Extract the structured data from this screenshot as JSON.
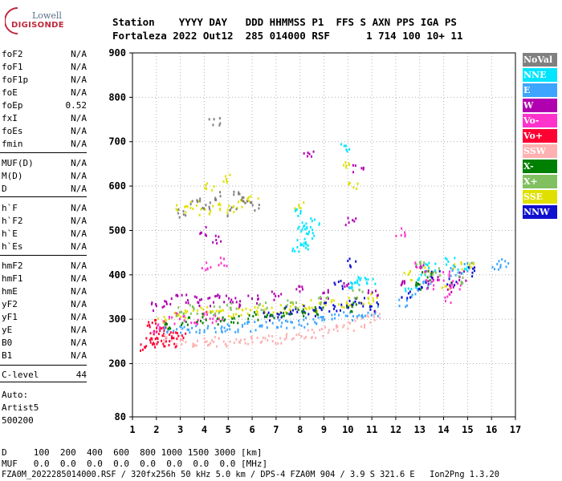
{
  "logo": {
    "line1": "Lowell",
    "line2": "DIGISONDE"
  },
  "header": {
    "line1": "Station    YYYY DAY   DDD HHMMSS P1  FFS S AXN PPS IGA PS",
    "line2": "Fortaleza 2022 Out12  285 014000 RSF      1 714 100 10+ 11"
  },
  "params": {
    "group1": [
      {
        "name": "foF2",
        "value": "N/A"
      },
      {
        "name": "foF1",
        "value": "N/A"
      },
      {
        "name": "foF1p",
        "value": "N/A"
      },
      {
        "name": "foE",
        "value": "N/A"
      },
      {
        "name": "foEp",
        "value": "0.52"
      },
      {
        "name": "fxI",
        "value": "N/A"
      },
      {
        "name": "foEs",
        "value": "N/A"
      },
      {
        "name": "fmin",
        "value": "N/A"
      }
    ],
    "group2": [
      {
        "name": "MUF(D)",
        "value": "N/A"
      },
      {
        "name": "M(D)",
        "value": "N/A"
      },
      {
        "name": "D",
        "value": "N/A"
      }
    ],
    "group3": [
      {
        "name": "h`F",
        "value": "N/A"
      },
      {
        "name": "h`F2",
        "value": "N/A"
      },
      {
        "name": "h`E",
        "value": "N/A"
      },
      {
        "name": "h`Es",
        "value": "N/A"
      }
    ],
    "group4": [
      {
        "name": "hmF2",
        "value": "N/A"
      },
      {
        "name": "hmF1",
        "value": "N/A"
      },
      {
        "name": "hmE",
        "value": "N/A"
      },
      {
        "name": "yF2",
        "value": "N/A"
      },
      {
        "name": "yF1",
        "value": "N/A"
      },
      {
        "name": "yE",
        "value": "N/A"
      },
      {
        "name": "B0",
        "value": "N/A"
      },
      {
        "name": "B1",
        "value": "N/A"
      }
    ],
    "group5": [
      {
        "name": "C-level",
        "value": "44"
      }
    ]
  },
  "auto": {
    "line1": "Auto:",
    "line2": "Artist5",
    "line3": "500200"
  },
  "legend": [
    {
      "label": "NoVal",
      "color": "#808080"
    },
    {
      "label": "NNE",
      "color": "#00e5ff"
    },
    {
      "label": "E",
      "color": "#3da5ff"
    },
    {
      "label": "W",
      "color": "#b000b0"
    },
    {
      "label": "Vo-",
      "color": "#ff33cc"
    },
    {
      "label": "Vo+",
      "color": "#ff0033"
    },
    {
      "label": "SSW",
      "color": "#ffb0b0"
    },
    {
      "label": "X-",
      "color": "#008000"
    },
    {
      "label": "X+",
      "color": "#80c060"
    },
    {
      "label": "SSE",
      "color": "#e0e000"
    },
    {
      "label": "NNW",
      "color": "#1010d0"
    }
  ],
  "footer": {
    "row_d": "D     100  200  400  600  800 1000 1500 3000 [km]",
    "row_muf": "MUF   0.0  0.0  0.0  0.0  0.0  0.0  0.0  0.0 [MHz]",
    "row_file": "FZA0M_2022285014000.RSF / 320fx256h 50 kHz 5.0 km / DPS-4 FZA0M 904 / 3.9 S 321.6 E   Ion2Png 1.3.20"
  },
  "chart_data": {
    "type": "scatter",
    "title": "",
    "xlabel": "",
    "ylabel": "",
    "xlim": [
      1,
      17
    ],
    "ylim": [
      80,
      900
    ],
    "x_ticks": [
      1,
      2,
      3,
      4,
      5,
      6,
      7,
      8,
      9,
      10,
      11,
      12,
      13,
      14,
      15,
      16,
      17
    ],
    "y_ticks": [
      80,
      200,
      300,
      400,
      500,
      600,
      700,
      800,
      900
    ],
    "grid": "dotted",
    "legend_position": "right",
    "series": [
      {
        "name": "Vo+",
        "color": "#ff0033",
        "points": [
          [
            1.5,
            240
          ],
          [
            1.7,
            250
          ],
          [
            1.9,
            270
          ],
          [
            2.0,
            255
          ],
          [
            2.2,
            245
          ],
          [
            2.4,
            260
          ],
          [
            2.6,
            250
          ],
          [
            2.8,
            270
          ],
          [
            3.0,
            265
          ],
          [
            2.1,
            290
          ],
          [
            1.8,
            285
          ],
          [
            2.3,
            275
          ]
        ]
      },
      {
        "name": "SSW",
        "color": "#ffb0b0",
        "points": [
          [
            2.5,
            258
          ],
          [
            3.0,
            255
          ],
          [
            3.5,
            252
          ],
          [
            4.0,
            250
          ],
          [
            4.5,
            252
          ],
          [
            5.0,
            250
          ],
          [
            5.5,
            250
          ],
          [
            6.0,
            252
          ],
          [
            6.5,
            255
          ],
          [
            7.0,
            258
          ],
          [
            7.5,
            262
          ],
          [
            8.0,
            265
          ],
          [
            8.5,
            270
          ],
          [
            9.0,
            275
          ],
          [
            9.5,
            280
          ],
          [
            10.0,
            285
          ],
          [
            10.5,
            295
          ],
          [
            11.0,
            305
          ],
          [
            11.3,
            315
          ]
        ]
      },
      {
        "name": "E",
        "color": "#3da5ff",
        "points": [
          [
            2.5,
            280
          ],
          [
            3.0,
            280
          ],
          [
            3.5,
            278
          ],
          [
            4.0,
            278
          ],
          [
            4.5,
            280
          ],
          [
            5.0,
            282
          ],
          [
            5.5,
            284
          ],
          [
            6.0,
            286
          ],
          [
            6.5,
            288
          ],
          [
            7.0,
            290
          ],
          [
            7.5,
            292
          ],
          [
            8.0,
            295
          ],
          [
            8.5,
            298
          ],
          [
            9.0,
            300
          ],
          [
            9.5,
            305
          ],
          [
            10.0,
            310
          ],
          [
            10.5,
            315
          ],
          [
            11.0,
            320
          ],
          [
            12.3,
            340
          ],
          [
            12.8,
            360
          ],
          [
            13.3,
            380
          ],
          [
            14.4,
            410
          ],
          [
            15.0,
            420
          ],
          [
            16.2,
            425
          ],
          [
            16.5,
            430
          ]
        ]
      },
      {
        "name": "SSE",
        "color": "#e0e000",
        "points": [
          [
            2.2,
            300
          ],
          [
            2.7,
            310
          ],
          [
            3.2,
            315
          ],
          [
            3.7,
            318
          ],
          [
            4.2,
            320
          ],
          [
            4.7,
            315
          ],
          [
            5.2,
            318
          ],
          [
            5.7,
            320
          ],
          [
            6.2,
            322
          ],
          [
            6.7,
            320
          ],
          [
            7.2,
            325
          ],
          [
            7.7,
            330
          ],
          [
            8.2,
            335
          ],
          [
            8.7,
            330
          ],
          [
            9.2,
            335
          ],
          [
            9.7,
            338
          ],
          [
            10.2,
            340
          ],
          [
            10.7,
            345
          ],
          [
            11.0,
            350
          ],
          [
            3.0,
            550
          ],
          [
            3.5,
            560
          ],
          [
            4.0,
            545
          ],
          [
            4.5,
            555
          ],
          [
            5.0,
            550
          ],
          [
            5.5,
            560
          ],
          [
            6.0,
            570
          ],
          [
            7.9,
            560
          ],
          [
            9.8,
            650
          ],
          [
            10.2,
            600
          ],
          [
            12.5,
            400
          ],
          [
            13.2,
            410
          ],
          [
            14.1,
            380
          ],
          [
            14.6,
            420
          ],
          [
            15.0,
            430
          ],
          [
            4.2,
            600
          ],
          [
            5.0,
            620
          ]
        ]
      },
      {
        "name": "W",
        "color": "#b000b0",
        "points": [
          [
            2.0,
            330
          ],
          [
            2.5,
            340
          ],
          [
            3.0,
            350
          ],
          [
            3.5,
            345
          ],
          [
            4.0,
            340
          ],
          [
            4.5,
            350
          ],
          [
            5.0,
            345
          ],
          [
            5.5,
            340
          ],
          [
            6.0,
            345
          ],
          [
            7.0,
            355
          ],
          [
            8.0,
            370
          ],
          [
            9.0,
            360
          ],
          [
            10.0,
            380
          ],
          [
            11.0,
            360
          ],
          [
            12.3,
            380
          ],
          [
            13.0,
            420
          ],
          [
            13.5,
            390
          ],
          [
            14.2,
            370
          ],
          [
            14.8,
            400
          ],
          [
            4.0,
            500
          ],
          [
            4.5,
            480
          ],
          [
            8.3,
            670
          ],
          [
            10.1,
            520
          ],
          [
            10.4,
            640
          ]
        ]
      },
      {
        "name": "NNW",
        "color": "#1010d0",
        "points": [
          [
            6.5,
            310
          ],
          [
            7.0,
            315
          ],
          [
            7.5,
            320
          ],
          [
            8.0,
            325
          ],
          [
            8.5,
            320
          ],
          [
            9.0,
            330
          ],
          [
            9.5,
            325
          ],
          [
            10.0,
            335
          ],
          [
            10.5,
            340
          ],
          [
            11.0,
            330
          ],
          [
            12.4,
            360
          ],
          [
            13.1,
            380
          ],
          [
            13.6,
            400
          ],
          [
            14.3,
            390
          ],
          [
            15.1,
            410
          ],
          [
            10.2,
            430
          ],
          [
            9.6,
            380
          ]
        ]
      },
      {
        "name": "NNE",
        "color": "#00e5ff",
        "points": [
          [
            7.8,
            460
          ],
          [
            8.0,
            480
          ],
          [
            8.1,
            500
          ],
          [
            8.2,
            510
          ],
          [
            8.4,
            495
          ],
          [
            8.6,
            520
          ],
          [
            8.0,
            540
          ],
          [
            8.3,
            470
          ],
          [
            10.0,
            380
          ],
          [
            10.3,
            385
          ],
          [
            10.6,
            390
          ],
          [
            10.9,
            385
          ],
          [
            12.6,
            370
          ],
          [
            13.1,
            400
          ],
          [
            13.4,
            420
          ],
          [
            14.2,
            430
          ],
          [
            14.8,
            410
          ],
          [
            9.8,
            690
          ]
        ]
      },
      {
        "name": "Vo-",
        "color": "#ff33cc",
        "points": [
          [
            2.0,
            280
          ],
          [
            2.5,
            300
          ],
          [
            3.0,
            310
          ],
          [
            3.5,
            295
          ],
          [
            4.0,
            310
          ],
          [
            4.5,
            300
          ],
          [
            12.2,
            500
          ],
          [
            13.0,
            420
          ],
          [
            13.4,
            380
          ],
          [
            14.0,
            400
          ],
          [
            14.5,
            380
          ],
          [
            14.2,
            350
          ],
          [
            4.0,
            420
          ],
          [
            4.8,
            430
          ]
        ]
      },
      {
        "name": "X-",
        "color": "#008000",
        "points": [
          [
            2.5,
            290
          ],
          [
            3.2,
            300
          ],
          [
            3.9,
            305
          ],
          [
            4.6,
            300
          ],
          [
            5.3,
            305
          ],
          [
            6.0,
            308
          ],
          [
            6.7,
            310
          ],
          [
            7.4,
            318
          ],
          [
            8.1,
            320
          ],
          [
            8.8,
            322
          ],
          [
            10.1,
            330
          ],
          [
            12.8,
            380
          ],
          [
            13.3,
            400
          ]
        ]
      },
      {
        "name": "X+",
        "color": "#80c060",
        "points": [
          [
            3.0,
            320
          ],
          [
            3.6,
            325
          ],
          [
            4.4,
            322
          ],
          [
            5.1,
            330
          ],
          [
            6.4,
            330
          ],
          [
            7.6,
            340
          ],
          [
            8.9,
            345
          ],
          [
            10.4,
            360
          ],
          [
            13.0,
            430
          ],
          [
            13.6,
            410
          ],
          [
            14.7,
            390
          ]
        ]
      },
      {
        "name": "NoVal",
        "color": "#808080",
        "points": [
          [
            3.1,
            540
          ],
          [
            3.6,
            570
          ],
          [
            4.1,
            560
          ],
          [
            4.6,
            580
          ],
          [
            5.1,
            545
          ],
          [
            5.6,
            575
          ],
          [
            6.1,
            555
          ],
          [
            5.4,
            580
          ],
          [
            4.4,
            750
          ]
        ]
      }
    ]
  }
}
